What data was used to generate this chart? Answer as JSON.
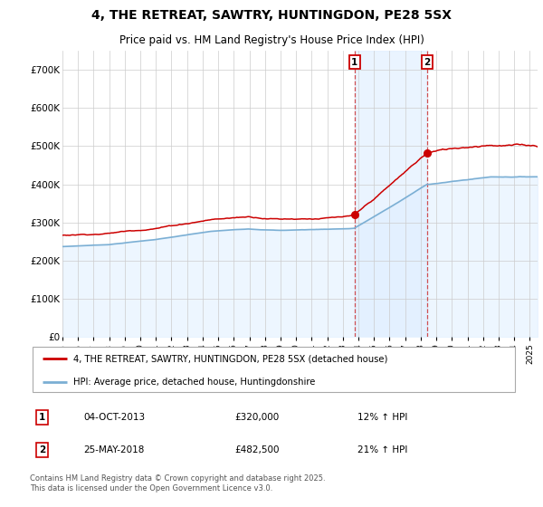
{
  "title": "4, THE RETREAT, SAWTRY, HUNTINGDON, PE28 5SX",
  "subtitle": "Price paid vs. HM Land Registry's House Price Index (HPI)",
  "title_fontsize": 10,
  "subtitle_fontsize": 8.5,
  "ylim": [
    0,
    750000
  ],
  "yticks": [
    0,
    100000,
    200000,
    300000,
    400000,
    500000,
    600000,
    700000
  ],
  "yticklabels": [
    "£0",
    "£100K",
    "£200K",
    "£300K",
    "£400K",
    "£500K",
    "£600K",
    "£700K"
  ],
  "house_color": "#cc0000",
  "hpi_color": "#7bafd4",
  "hpi_fill_color": "#ddeeff",
  "background_color": "#ffffff",
  "grid_color": "#cccccc",
  "legend_house": "4, THE RETREAT, SAWTRY, HUNTINGDON, PE28 5SX (detached house)",
  "legend_hpi": "HPI: Average price, detached house, Huntingdonshire",
  "sale1_date": "04-OCT-2013",
  "sale1_price": "£320,000",
  "sale1_hpi": "12% ↑ HPI",
  "sale2_date": "25-MAY-2018",
  "sale2_price": "£482,500",
  "sale2_hpi": "21% ↑ HPI",
  "copyright_text": "Contains HM Land Registry data © Crown copyright and database right 2025.\nThis data is licensed under the Open Government Licence v3.0.",
  "shade_start": 2013.75,
  "shade_end": 2018.42,
  "vline1_x": 2013.75,
  "vline2_x": 2018.42,
  "marker1_x": 2013.75,
  "marker1_y": 320000,
  "marker2_x": 2018.42,
  "marker2_y": 482500,
  "xmin": 1995,
  "xmax": 2025.5
}
